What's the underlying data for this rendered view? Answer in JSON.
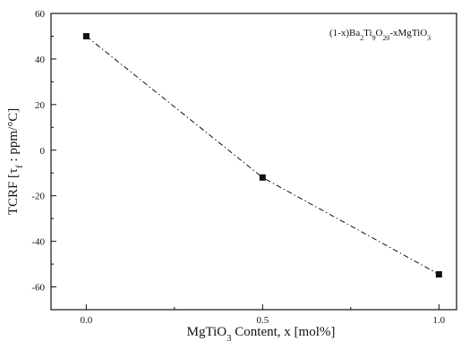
{
  "chart_data": {
    "type": "line",
    "x": [
      0.0,
      0.5,
      1.0
    ],
    "series": [
      {
        "values": [
          50,
          -12,
          -54.5
        ],
        "color": "#111111",
        "line_style": "dash-dot",
        "marker": "square"
      }
    ],
    "xlim": [
      -0.1,
      1.05
    ],
    "ylim": [
      -70,
      60
    ],
    "xticks": [
      0.0,
      0.5,
      1.0
    ],
    "xtick_labels": [
      "0.0",
      "0.5",
      "1.0"
    ],
    "yticks": [
      -60,
      -40,
      -20,
      0,
      20,
      40,
      60
    ],
    "ytick_labels": [
      "-60",
      "-40",
      "-20",
      "0",
      "20",
      "40",
      "60"
    ],
    "xlabel": {
      "pre": "MgTiO",
      "sub": "3",
      "post": " Content, x [mol%]"
    },
    "ylabel": {
      "pre": "TCRF [τ",
      "sub": "f",
      "post": " : ppm/°C]"
    },
    "annotation": {
      "parts": [
        {
          "t": "(1-x)Ba",
          "sub": false
        },
        {
          "t": "2",
          "sub": true
        },
        {
          "t": "Ti",
          "sub": false
        },
        {
          "t": "9",
          "sub": true
        },
        {
          "t": "O",
          "sub": false
        },
        {
          "t": "20",
          "sub": true
        },
        {
          "t": "-xMgTiO",
          "sub": false
        },
        {
          "t": "3",
          "sub": true
        }
      ]
    },
    "grid": false,
    "legend": "none"
  }
}
